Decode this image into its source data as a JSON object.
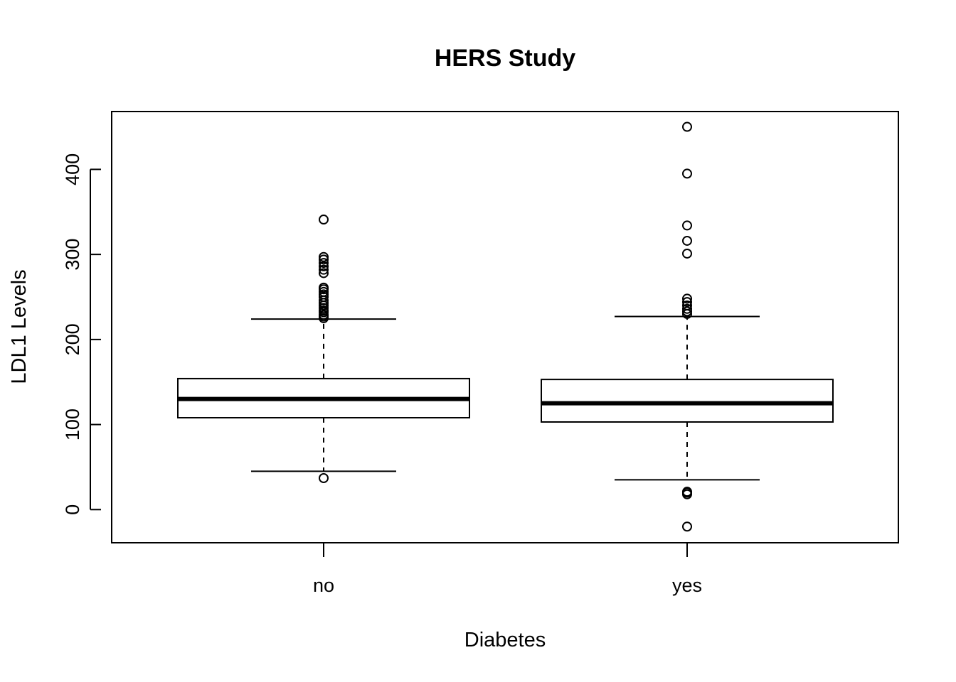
{
  "chart_data": {
    "type": "boxplot",
    "title": "HERS Study",
    "xlabel": "Diabetes",
    "ylabel": "LDL1 Levels",
    "ylim": [
      -39,
      468
    ],
    "yticks": [
      0,
      100,
      200,
      300,
      400
    ],
    "grid": false,
    "categories": [
      "no",
      "yes"
    ],
    "boxes": [
      {
        "category": "no",
        "whisker_low": 45,
        "q1": 108,
        "median": 130,
        "q3": 154,
        "whisker_high": 224,
        "outliers": [
          37,
          225,
          227,
          229,
          232,
          234,
          237,
          240,
          243,
          246,
          250,
          253,
          256,
          259,
          261,
          278,
          282,
          286,
          290,
          294,
          297,
          341
        ]
      },
      {
        "category": "yes",
        "whisker_low": 35,
        "q1": 103,
        "median": 125,
        "q3": 153,
        "whisker_high": 227,
        "outliers": [
          -20,
          18,
          20,
          21,
          230,
          233,
          236,
          240,
          244,
          248,
          301,
          316,
          334,
          395,
          450
        ]
      }
    ]
  }
}
